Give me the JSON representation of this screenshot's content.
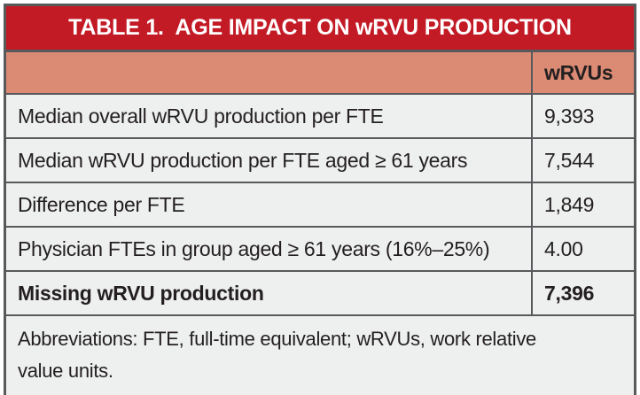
{
  "table": {
    "title": "TABLE 1.  AGE IMPACT ON wRVU PRODUCTION",
    "header": {
      "label": "",
      "value": "wRVUs"
    },
    "rows": [
      {
        "label": "Median overall wRVU production per FTE",
        "value": "9,393"
      },
      {
        "label": "Median wRVU production per FTE aged ≥ 61 years",
        "value": "7,544"
      },
      {
        "label": "Difference per FTE",
        "value": "1,849"
      },
      {
        "label": "Physician FTEs in group aged ≥ 61 years (16%–25%)",
        "value": "4.00"
      },
      {
        "label": "Missing wRVU production",
        "value": "7,396"
      }
    ],
    "footnote": "Abbreviations: FTE, full-time equivalent; wRVUs, work relative value units.",
    "colors": {
      "header_red": "#C31B26",
      "subheader_salmon": "#DB8B73",
      "row_bg": "#EEEFEF",
      "border": "#58595B",
      "text": "#231F20",
      "title_text": "#FFFFFF"
    }
  }
}
